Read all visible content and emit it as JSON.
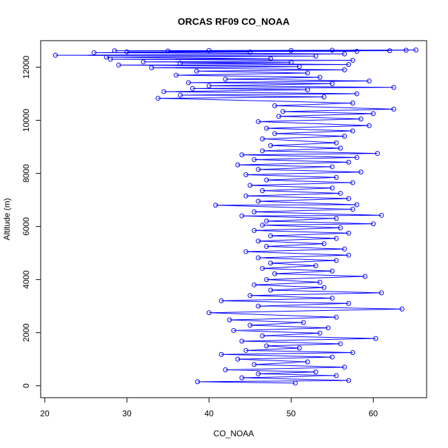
{
  "chart_data": {
    "type": "line",
    "title": "ORCAS RF09 CO_NOAA",
    "xlabel": "CO_NOAA",
    "ylabel": "Altitude (m)",
    "xlim": [
      19.5,
      66.5
    ],
    "ylim": [
      -450,
      13000
    ],
    "x_ticks": [
      20,
      30,
      40,
      50,
      60
    ],
    "y_ticks": [
      0,
      2000,
      4000,
      6000,
      8000,
      10000,
      12000
    ],
    "grid": false,
    "legend": "none",
    "markers": "open-circle",
    "series_color": "#0000ff",
    "series": [
      {
        "values": [
          {
            "x": 50.5,
            "y": 100
          },
          {
            "x": 38.6,
            "y": 150
          },
          {
            "x": 57.0,
            "y": 200
          },
          {
            "x": 44.0,
            "y": 300
          },
          {
            "x": 55.5,
            "y": 380
          },
          {
            "x": 46.0,
            "y": 450
          },
          {
            "x": 53.0,
            "y": 520
          },
          {
            "x": 42.0,
            "y": 600
          },
          {
            "x": 56.5,
            "y": 700
          },
          {
            "x": 45.5,
            "y": 800
          },
          {
            "x": 52.0,
            "y": 900
          },
          {
            "x": 43.5,
            "y": 1000
          },
          {
            "x": 55.0,
            "y": 1080
          },
          {
            "x": 41.5,
            "y": 1180
          },
          {
            "x": 57.5,
            "y": 1250
          },
          {
            "x": 44.5,
            "y": 1330
          },
          {
            "x": 51.0,
            "y": 1420
          },
          {
            "x": 47.0,
            "y": 1500
          },
          {
            "x": 56.0,
            "y": 1580
          },
          {
            "x": 44.0,
            "y": 1680
          },
          {
            "x": 60.3,
            "y": 1780
          },
          {
            "x": 46.5,
            "y": 1880
          },
          {
            "x": 53.5,
            "y": 1980
          },
          {
            "x": 43.0,
            "y": 2080
          },
          {
            "x": 54.5,
            "y": 2180
          },
          {
            "x": 45.0,
            "y": 2280
          },
          {
            "x": 51.5,
            "y": 2380
          },
          {
            "x": 42.5,
            "y": 2480
          },
          {
            "x": 55.5,
            "y": 2580
          },
          {
            "x": 40.0,
            "y": 2750
          },
          {
            "x": 63.5,
            "y": 2890
          },
          {
            "x": 46.0,
            "y": 3000
          },
          {
            "x": 57.0,
            "y": 3100
          },
          {
            "x": 41.5,
            "y": 3200
          },
          {
            "x": 55.0,
            "y": 3300
          },
          {
            "x": 45.0,
            "y": 3400
          },
          {
            "x": 61.0,
            "y": 3500
          },
          {
            "x": 47.5,
            "y": 3600
          },
          {
            "x": 54.0,
            "y": 3700
          },
          {
            "x": 45.5,
            "y": 3800
          },
          {
            "x": 53.5,
            "y": 3900
          },
          {
            "x": 47.0,
            "y": 4000
          },
          {
            "x": 59.0,
            "y": 4120
          },
          {
            "x": 48.0,
            "y": 4220
          },
          {
            "x": 55.0,
            "y": 4320
          },
          {
            "x": 46.5,
            "y": 4420
          },
          {
            "x": 53.0,
            "y": 4520
          },
          {
            "x": 47.5,
            "y": 4620
          },
          {
            "x": 55.5,
            "y": 4720
          },
          {
            "x": 46.0,
            "y": 4820
          },
          {
            "x": 57.0,
            "y": 4920
          },
          {
            "x": 44.5,
            "y": 5050
          },
          {
            "x": 56.5,
            "y": 5150
          },
          {
            "x": 47.0,
            "y": 5250
          },
          {
            "x": 54.0,
            "y": 5350
          },
          {
            "x": 46.0,
            "y": 5450
          },
          {
            "x": 55.5,
            "y": 5550
          },
          {
            "x": 47.5,
            "y": 5650
          },
          {
            "x": 57.0,
            "y": 5750
          },
          {
            "x": 45.5,
            "y": 5850
          },
          {
            "x": 56.0,
            "y": 5950
          },
          {
            "x": 46.5,
            "y": 6050
          },
          {
            "x": 60.0,
            "y": 6100
          },
          {
            "x": 47.0,
            "y": 6200
          },
          {
            "x": 55.5,
            "y": 6300
          },
          {
            "x": 44.0,
            "y": 6400
          },
          {
            "x": 61.0,
            "y": 6420
          },
          {
            "x": 45.5,
            "y": 6550
          },
          {
            "x": 57.5,
            "y": 6650
          },
          {
            "x": 40.8,
            "y": 6800
          },
          {
            "x": 58.0,
            "y": 6820
          },
          {
            "x": 46.0,
            "y": 6950
          },
          {
            "x": 57.0,
            "y": 7050
          },
          {
            "x": 44.5,
            "y": 7150
          },
          {
            "x": 56.0,
            "y": 7250
          },
          {
            "x": 46.5,
            "y": 7350
          },
          {
            "x": 55.0,
            "y": 7450
          },
          {
            "x": 45.0,
            "y": 7550
          },
          {
            "x": 57.5,
            "y": 7650
          },
          {
            "x": 47.0,
            "y": 7750
          },
          {
            "x": 55.5,
            "y": 7850
          },
          {
            "x": 44.5,
            "y": 7950
          },
          {
            "x": 58.5,
            "y": 8050
          },
          {
            "x": 46.0,
            "y": 8150
          },
          {
            "x": 55.0,
            "y": 8250
          },
          {
            "x": 43.5,
            "y": 8320
          },
          {
            "x": 57.0,
            "y": 8420
          },
          {
            "x": 45.5,
            "y": 8520
          },
          {
            "x": 58.0,
            "y": 8600
          },
          {
            "x": 44.0,
            "y": 8700
          },
          {
            "x": 60.5,
            "y": 8750
          },
          {
            "x": 46.5,
            "y": 8850
          },
          {
            "x": 56.0,
            "y": 8950
          },
          {
            "x": 47.5,
            "y": 9050
          },
          {
            "x": 55.5,
            "y": 9150
          },
          {
            "x": 46.5,
            "y": 9300
          },
          {
            "x": 56.5,
            "y": 9400
          },
          {
            "x": 48.0,
            "y": 9500
          },
          {
            "x": 57.5,
            "y": 9600
          },
          {
            "x": 47.0,
            "y": 9700
          },
          {
            "x": 59.5,
            "y": 9800
          },
          {
            "x": 46.0,
            "y": 9950
          },
          {
            "x": 58.5,
            "y": 10050
          },
          {
            "x": 48.5,
            "y": 10150
          },
          {
            "x": 60.0,
            "y": 10250
          },
          {
            "x": 49.0,
            "y": 10330
          },
          {
            "x": 62.5,
            "y": 10420
          },
          {
            "x": 48.0,
            "y": 10550
          },
          {
            "x": 57.5,
            "y": 10650
          },
          {
            "x": 33.8,
            "y": 10830
          },
          {
            "x": 54.0,
            "y": 10880
          },
          {
            "x": 36.5,
            "y": 10950
          },
          {
            "x": 58.0,
            "y": 11000
          },
          {
            "x": 34.5,
            "y": 11080
          },
          {
            "x": 52.0,
            "y": 11150
          },
          {
            "x": 38.0,
            "y": 11200
          },
          {
            "x": 62.5,
            "y": 11240
          },
          {
            "x": 40.0,
            "y": 11300
          },
          {
            "x": 55.0,
            "y": 11380
          },
          {
            "x": 37.5,
            "y": 11420
          },
          {
            "x": 59.5,
            "y": 11480
          },
          {
            "x": 42.0,
            "y": 11550
          },
          {
            "x": 53.5,
            "y": 11620
          },
          {
            "x": 36.0,
            "y": 11700
          },
          {
            "x": 52.0,
            "y": 11780
          },
          {
            "x": 38.5,
            "y": 11850
          },
          {
            "x": 56.5,
            "y": 11900
          },
          {
            "x": 33.0,
            "y": 11980
          },
          {
            "x": 51.0,
            "y": 12020
          },
          {
            "x": 29.0,
            "y": 12080
          },
          {
            "x": 57.0,
            "y": 12100
          },
          {
            "x": 36.5,
            "y": 12150
          },
          {
            "x": 50.0,
            "y": 12180
          },
          {
            "x": 32.0,
            "y": 12200
          },
          {
            "x": 57.5,
            "y": 12260
          },
          {
            "x": 28.0,
            "y": 12300
          },
          {
            "x": 47.5,
            "y": 12320
          },
          {
            "x": 27.5,
            "y": 12380
          },
          {
            "x": 53.0,
            "y": 12420
          },
          {
            "x": 21.3,
            "y": 12450
          },
          {
            "x": 56.5,
            "y": 12500
          },
          {
            "x": 26.0,
            "y": 12550
          },
          {
            "x": 45.0,
            "y": 12570
          },
          {
            "x": 30.0,
            "y": 12580
          },
          {
            "x": 58.0,
            "y": 12600
          },
          {
            "x": 35.0,
            "y": 12610
          },
          {
            "x": 62.0,
            "y": 12620
          },
          {
            "x": 40.0,
            "y": 12630
          },
          {
            "x": 64.0,
            "y": 12640
          },
          {
            "x": 50.0,
            "y": 12630
          },
          {
            "x": 65.2,
            "y": 12650
          },
          {
            "x": 55.0,
            "y": 12640
          },
          {
            "x": 28.5,
            "y": 12620
          }
        ]
      }
    ]
  }
}
